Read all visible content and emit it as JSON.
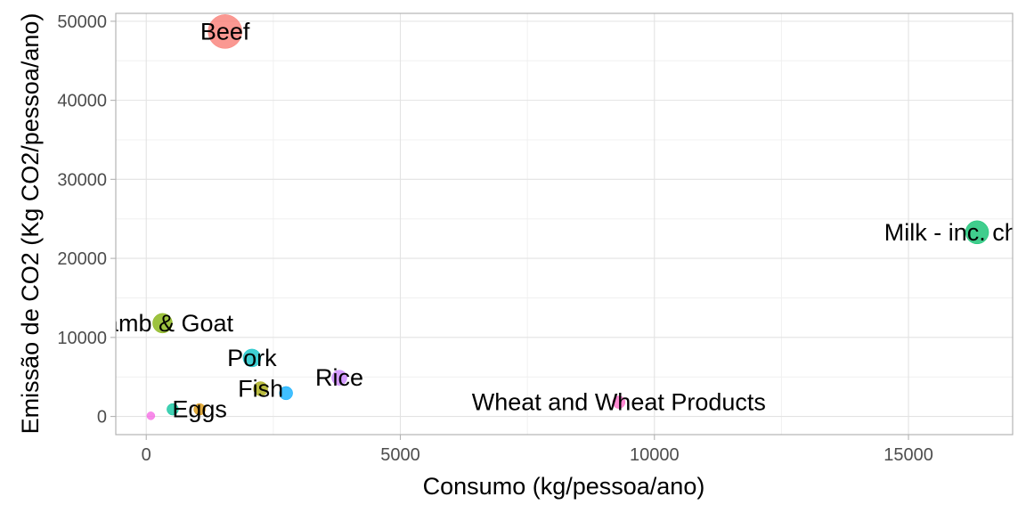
{
  "chart_data": {
    "type": "scatter",
    "title": "",
    "xlabel": "Consumo (kg/pessoa/ano)",
    "ylabel": "Emissão de CO2 (Kg CO2/pessoa/ano)",
    "xlim": [
      -600,
      17050
    ],
    "ylim": [
      -2300,
      51000
    ],
    "x_ticks": [
      0,
      5000,
      10000,
      15000
    ],
    "x_tick_labels": [
      "0",
      "5000",
      "10000",
      "15000"
    ],
    "y_ticks": [
      0,
      10000,
      20000,
      30000,
      40000,
      50000
    ],
    "y_tick_labels": [
      "0",
      "10000",
      "20000",
      "30000",
      "40000",
      "50000"
    ],
    "grid": true,
    "legend": "none",
    "points": [
      {
        "label": "Beef",
        "x": 1550,
        "y": 48700,
        "color": "#f8766d",
        "size": 19,
        "show_label": true
      },
      {
        "label": "Milk - inc. cheese",
        "x": 16350,
        "y": 23300,
        "color": "#00be67",
        "size": 13,
        "show_label": true
      },
      {
        "label": "Lamb & Goat",
        "x": 320,
        "y": 11800,
        "color": "#7cae00",
        "size": 11,
        "show_label": true
      },
      {
        "label": "Pork",
        "x": 2080,
        "y": 7400,
        "color": "#00bfc4",
        "size": 10,
        "show_label": true
      },
      {
        "label": "Rice",
        "x": 3800,
        "y": 4900,
        "color": "#c77cff",
        "size": 8.5,
        "show_label": true
      },
      {
        "label": "Fish",
        "x": 2250,
        "y": 3500,
        "color": "#a3a500",
        "size": 8,
        "show_label": true
      },
      {
        "label": "",
        "x": 2750,
        "y": 2950,
        "color": "#00a9ff",
        "size": 7.5,
        "show_label": false
      },
      {
        "label": "Wheat and Wheat Products",
        "x": 9300,
        "y": 1800,
        "color": "#ff61c3",
        "size": 7,
        "show_label": true
      },
      {
        "label": "Eggs",
        "x": 1050,
        "y": 900,
        "color": "#d89000",
        "size": 6.5,
        "show_label": true
      },
      {
        "label": "",
        "x": 520,
        "y": 900,
        "color": "#00c19a",
        "size": 6.5,
        "show_label": false
      },
      {
        "label": "",
        "x": 90,
        "y": 80,
        "color": "#f564e3",
        "size": 4.5,
        "show_label": false
      }
    ]
  }
}
